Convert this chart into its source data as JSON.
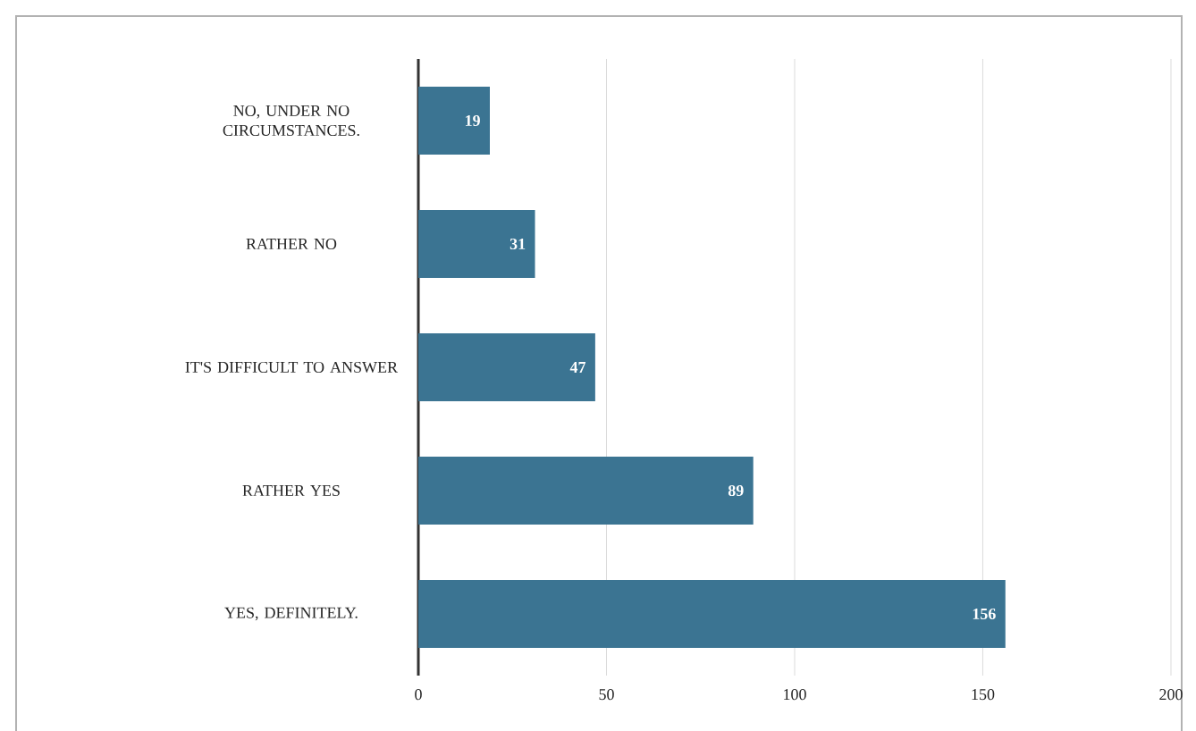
{
  "chart_data": {
    "type": "bar",
    "orientation": "horizontal",
    "categories": [
      "NO, UNDER NO CIRCUMSTANCES.",
      "RATHER NO",
      "IT'S DIFFICULT TO ANSWER",
      "RATHER YES",
      "YES, DEFINITELY."
    ],
    "values": [
      19,
      31,
      47,
      89,
      156
    ],
    "color": "#3b7492",
    "xlim": [
      0,
      200
    ],
    "xticks": [
      0,
      50,
      100,
      150,
      200
    ],
    "grid": "x",
    "data_labels": true
  }
}
